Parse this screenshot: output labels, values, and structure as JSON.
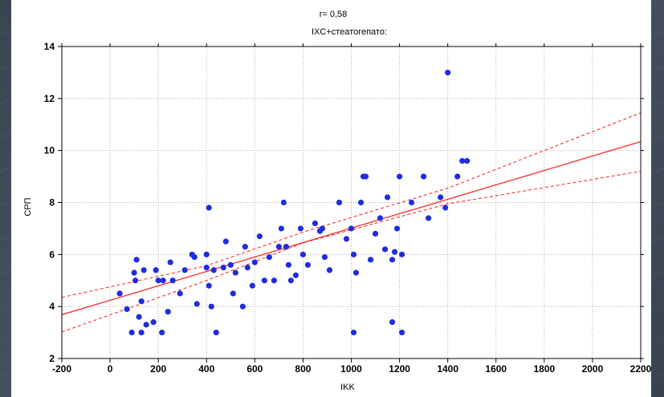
{
  "colors": {
    "points": "#1f2de0",
    "regression": "#ff1a1a",
    "grid": "#b0b0b0"
  },
  "chart_data": {
    "type": "scatter",
    "title": "r= 0,58",
    "subtitle": "IXC+стеатогепато:",
    "xlabel": "IKK",
    "ylabel": "СРП",
    "xlim": [
      -200,
      2200
    ],
    "ylim": [
      2,
      14
    ],
    "x_ticks": [
      -200,
      0,
      200,
      400,
      600,
      800,
      1000,
      1200,
      1400,
      1600,
      1800,
      2000,
      2200
    ],
    "y_ticks": [
      2,
      4,
      6,
      8,
      10,
      12,
      14
    ],
    "grid": true,
    "series": [
      {
        "values": [
          [
            40,
            4.5
          ],
          [
            70,
            3.9
          ],
          [
            90,
            3.0
          ],
          [
            100,
            5.3
          ],
          [
            105,
            5.0
          ],
          [
            110,
            5.8
          ],
          [
            120,
            3.6
          ],
          [
            130,
            4.2
          ],
          [
            130,
            3.0
          ],
          [
            140,
            5.4
          ],
          [
            150,
            3.3
          ],
          [
            180,
            3.4
          ],
          [
            190,
            5.4
          ],
          [
            200,
            5.0
          ],
          [
            215,
            3.0
          ],
          [
            220,
            5.0
          ],
          [
            240,
            3.8
          ],
          [
            250,
            5.7
          ],
          [
            260,
            5.0
          ],
          [
            290,
            4.5
          ],
          [
            310,
            5.4
          ],
          [
            340,
            6.0
          ],
          [
            350,
            5.9
          ],
          [
            360,
            4.1
          ],
          [
            400,
            5.5
          ],
          [
            400,
            6.0
          ],
          [
            410,
            7.8
          ],
          [
            410,
            4.8
          ],
          [
            420,
            4.0
          ],
          [
            430,
            5.4
          ],
          [
            440,
            3.0
          ],
          [
            470,
            5.5
          ],
          [
            480,
            6.5
          ],
          [
            500,
            5.6
          ],
          [
            510,
            4.5
          ],
          [
            520,
            5.3
          ],
          [
            550,
            4.0
          ],
          [
            560,
            6.3
          ],
          [
            570,
            5.5
          ],
          [
            590,
            4.8
          ],
          [
            600,
            5.7
          ],
          [
            620,
            6.7
          ],
          [
            640,
            5.0
          ],
          [
            660,
            5.9
          ],
          [
            680,
            5.0
          ],
          [
            700,
            6.3
          ],
          [
            710,
            7.0
          ],
          [
            720,
            8.0
          ],
          [
            730,
            6.3
          ],
          [
            740,
            5.6
          ],
          [
            750,
            5.0
          ],
          [
            770,
            5.2
          ],
          [
            790,
            7.0
          ],
          [
            800,
            6.0
          ],
          [
            820,
            5.6
          ],
          [
            850,
            7.2
          ],
          [
            870,
            6.9
          ],
          [
            880,
            7.0
          ],
          [
            890,
            5.9
          ],
          [
            910,
            5.4
          ],
          [
            950,
            8.0
          ],
          [
            980,
            6.6
          ],
          [
            1000,
            7.0
          ],
          [
            1010,
            6.0
          ],
          [
            1020,
            5.3
          ],
          [
            1040,
            8.0
          ],
          [
            1050,
            9.0
          ],
          [
            1060,
            9.0
          ],
          [
            1080,
            5.8
          ],
          [
            1100,
            6.8
          ],
          [
            1120,
            7.4
          ],
          [
            1140,
            6.2
          ],
          [
            1150,
            8.2
          ],
          [
            1170,
            5.8
          ],
          [
            1180,
            6.1
          ],
          [
            1190,
            7.0
          ],
          [
            1200,
            9.0
          ],
          [
            1210,
            6.0
          ],
          [
            1250,
            8.0
          ],
          [
            1300,
            9.0
          ],
          [
            1320,
            7.4
          ],
          [
            1370,
            8.2
          ],
          [
            1390,
            7.8
          ],
          [
            1440,
            9.0
          ],
          [
            1460,
            9.6
          ],
          [
            1480,
            9.6
          ],
          [
            1400,
            13.0
          ],
          [
            1010,
            3.0
          ],
          [
            1210,
            3.0
          ],
          [
            1170,
            3.4
          ]
        ]
      }
    ],
    "regression": {
      "slope": 0.002774,
      "intercept": 4.24,
      "conf_band": [
        [
          -200,
          3.02,
          4.35
        ],
        [
          400,
          5.0,
          5.57
        ],
        [
          800,
          6.45,
          6.86
        ],
        [
          1400,
          7.95,
          8.55
        ],
        [
          2200,
          9.2,
          11.45
        ]
      ]
    }
  }
}
